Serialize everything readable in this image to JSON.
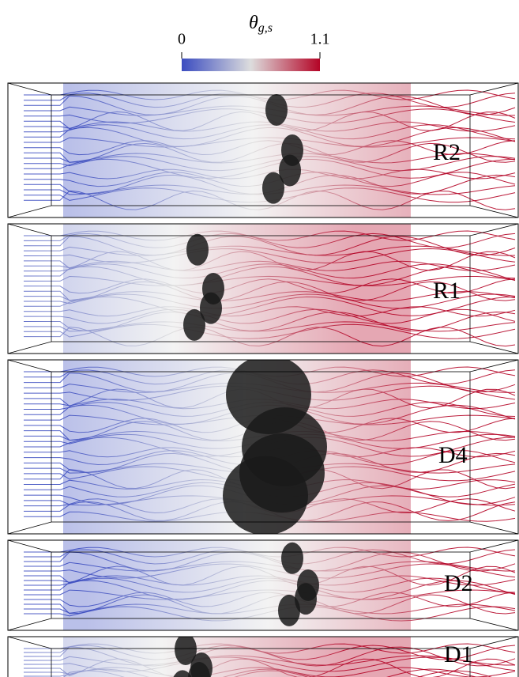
{
  "colorbar": {
    "symbol": "θ",
    "subscript": "g,s",
    "lim": [
      0,
      1.1
    ],
    "ticks": [
      0,
      1.1
    ],
    "colors": [
      "#3b4cc0",
      "#dddddd",
      "#b40426"
    ]
  },
  "panels": [
    {
      "label": "R2"
    },
    {
      "label": "R1"
    },
    {
      "label": "D4"
    },
    {
      "label": "D2"
    },
    {
      "label": "D1"
    }
  ]
}
